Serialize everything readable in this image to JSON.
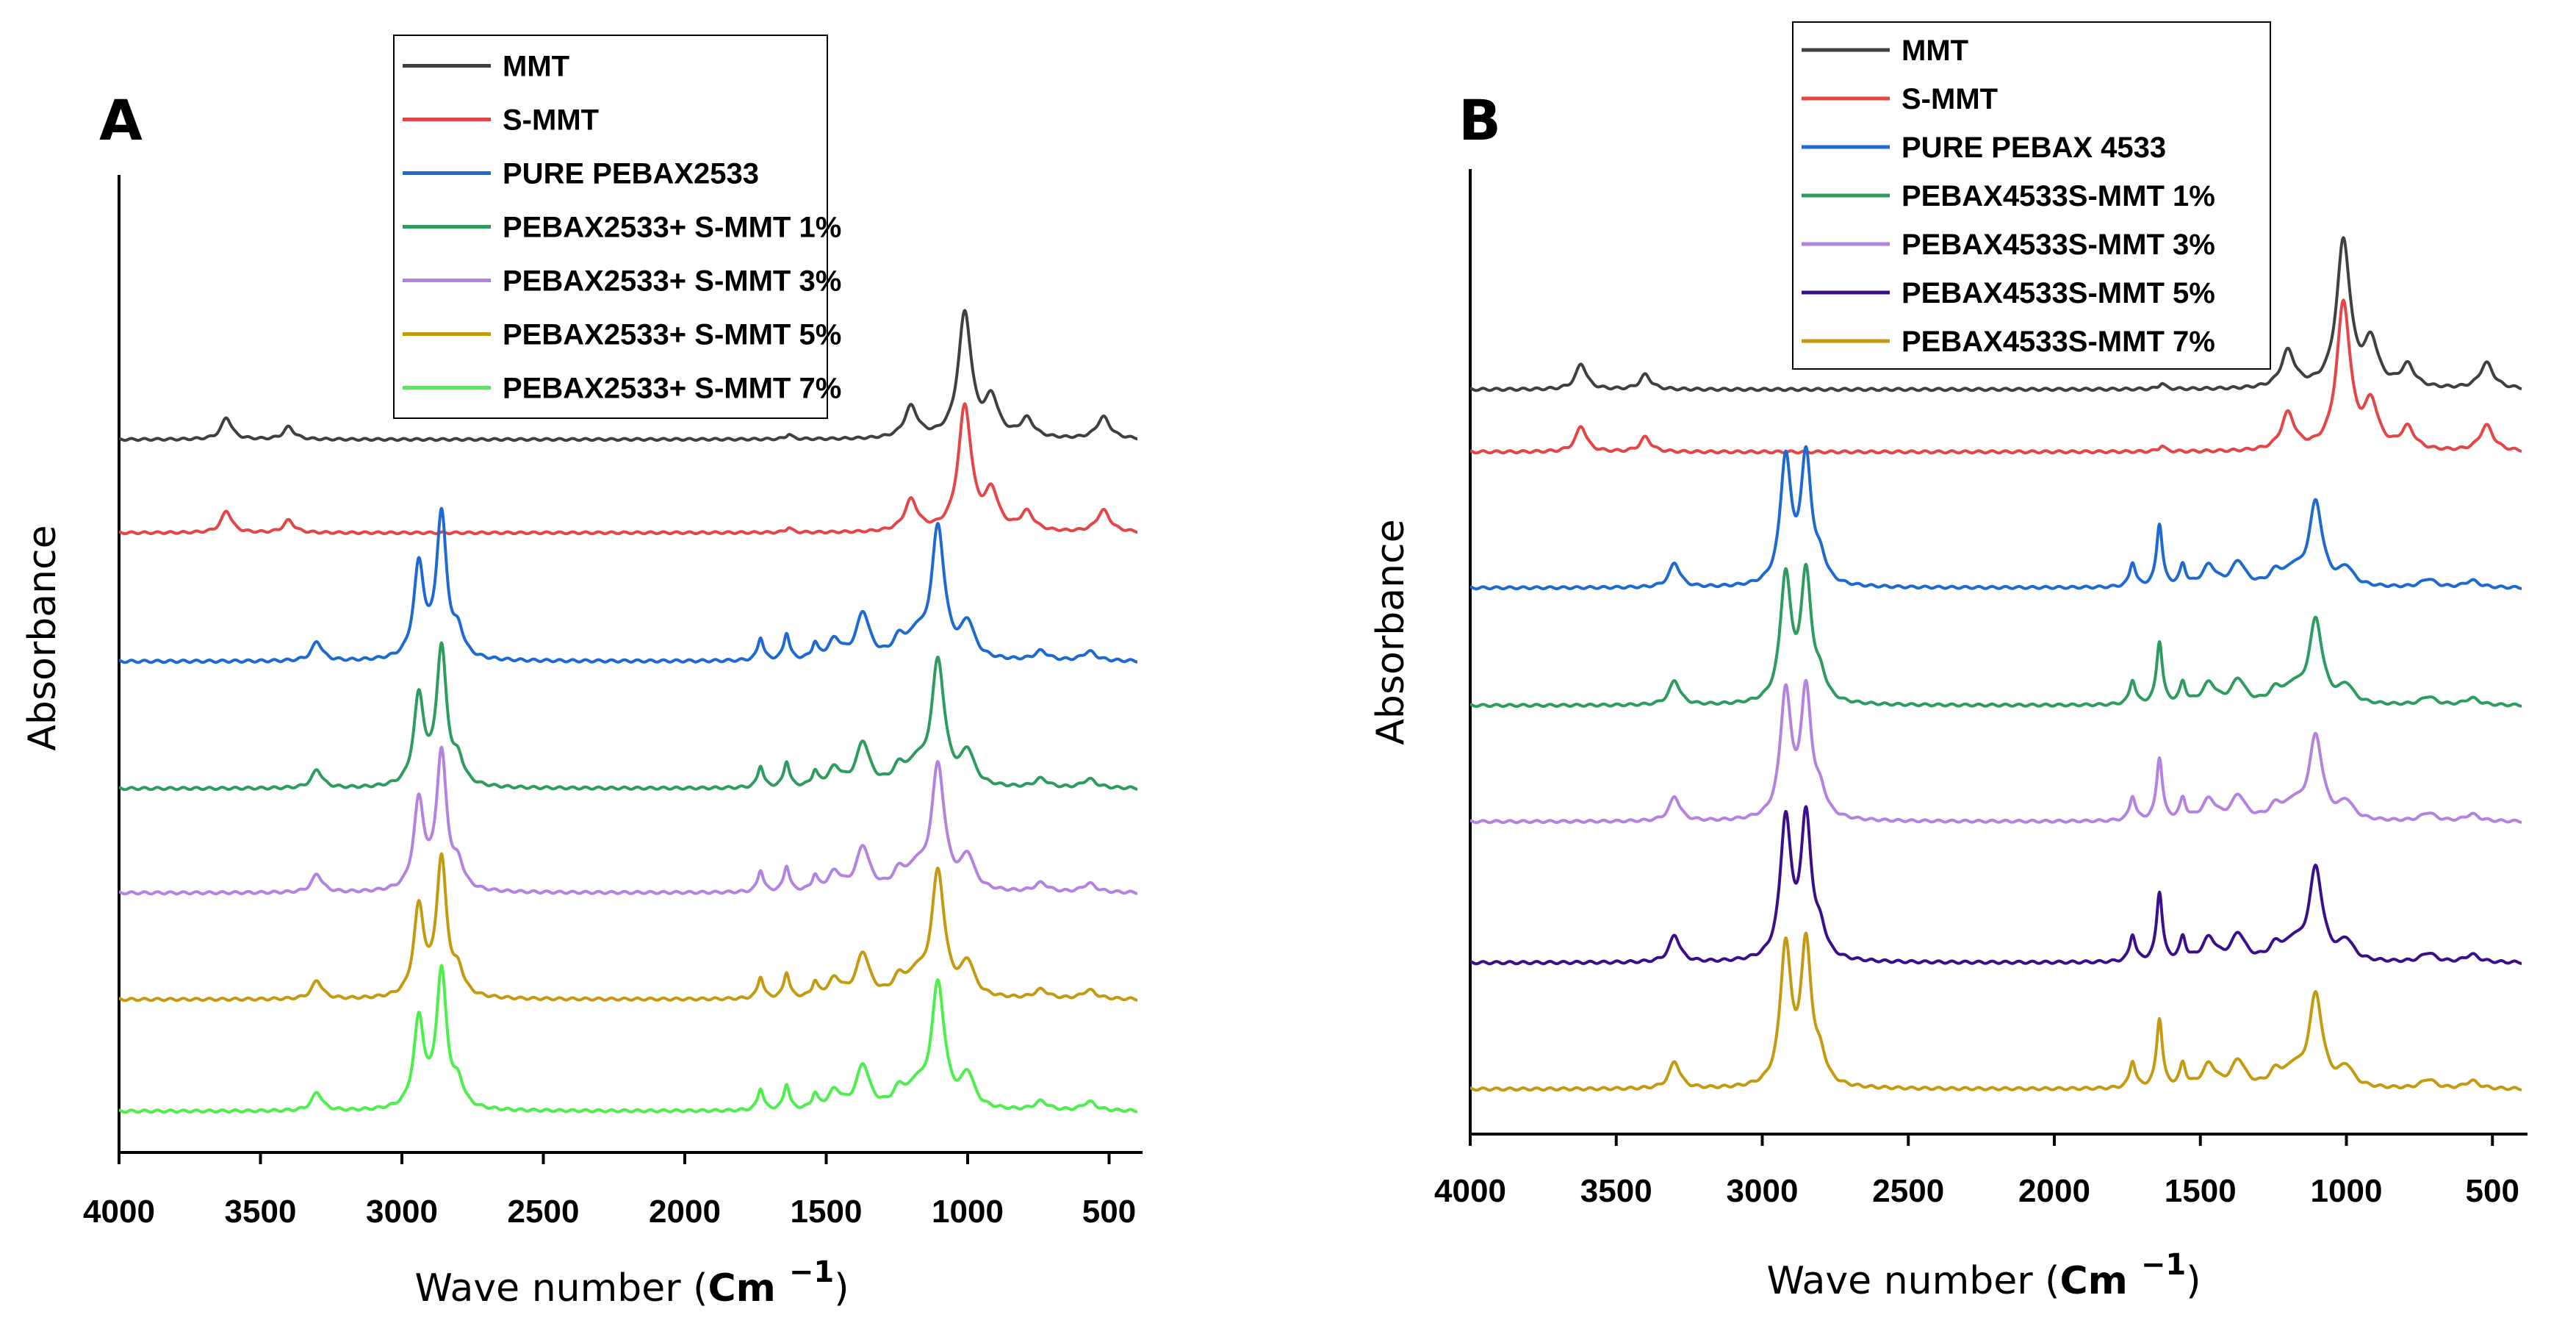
{
  "chart_data": [
    {
      "type": "line",
      "panel_label": "A",
      "xlabel": "Wave number",
      "xlabel_unit": "Cm",
      "xlabel_unit_exponent": "−1",
      "ylabel": "Absorbance",
      "xlim": [
        4000,
        400
      ],
      "xticks": [
        "4000",
        "3500",
        "3000",
        "2500",
        "2000",
        "1500",
        "1000",
        "500"
      ],
      "legend_position": "top-center",
      "series": [
        {
          "name": "MMT",
          "color": "#404040",
          "peaks": [
            [
              3620,
              0.35
            ],
            [
              3400,
              0.2
            ],
            [
              1632,
              0.08
            ],
            [
              1200,
              0.5
            ],
            [
              1010,
              2.0
            ],
            [
              915,
              0.6
            ],
            [
              790,
              0.3
            ],
            [
              520,
              0.35
            ]
          ]
        },
        {
          "name": "S-MMT",
          "color": "#e34646",
          "peaks": [
            [
              3620,
              0.35
            ],
            [
              3400,
              0.2
            ],
            [
              1632,
              0.08
            ],
            [
              1200,
              0.5
            ],
            [
              1010,
              2.0
            ],
            [
              915,
              0.6
            ],
            [
              790,
              0.3
            ],
            [
              520,
              0.35
            ]
          ]
        },
        {
          "name": "PURE PEBAX2533",
          "color": "#1e6ad0",
          "peaks": [
            [
              3300,
              0.25
            ],
            [
              2940,
              1.2
            ],
            [
              2860,
              1.85
            ],
            [
              2800,
              0.3
            ],
            [
              1732,
              0.3
            ],
            [
              1640,
              0.35
            ],
            [
              1540,
              0.2
            ],
            [
              1470,
              0.25
            ],
            [
              1370,
              0.6
            ],
            [
              1240,
              0.25
            ],
            [
              1180,
              0.25
            ],
            [
              1105,
              1.7
            ],
            [
              1000,
              0.45
            ],
            [
              740,
              0.12
            ],
            [
              570,
              0.12
            ]
          ]
        },
        {
          "name": "PEBAX2533+ S-MMT 1%",
          "color": "#2e9c5e",
          "peaks": [
            [
              3300,
              0.25
            ],
            [
              2940,
              1.2
            ],
            [
              2860,
              1.85
            ],
            [
              2800,
              0.3
            ],
            [
              1732,
              0.3
            ],
            [
              1640,
              0.35
            ],
            [
              1540,
              0.2
            ],
            [
              1470,
              0.25
            ],
            [
              1370,
              0.6
            ],
            [
              1240,
              0.25
            ],
            [
              1180,
              0.25
            ],
            [
              1105,
              1.7
            ],
            [
              1000,
              0.45
            ],
            [
              740,
              0.12
            ],
            [
              570,
              0.12
            ]
          ]
        },
        {
          "name": "PEBAX2533+ S-MMT 3%",
          "color": "#b483e2",
          "peaks": [
            [
              3300,
              0.25
            ],
            [
              2940,
              1.2
            ],
            [
              2860,
              1.85
            ],
            [
              2800,
              0.3
            ],
            [
              1732,
              0.3
            ],
            [
              1640,
              0.35
            ],
            [
              1540,
              0.2
            ],
            [
              1470,
              0.25
            ],
            [
              1370,
              0.6
            ],
            [
              1240,
              0.25
            ],
            [
              1180,
              0.25
            ],
            [
              1105,
              1.7
            ],
            [
              1000,
              0.45
            ],
            [
              740,
              0.12
            ],
            [
              570,
              0.12
            ]
          ]
        },
        {
          "name": "PEBAX2533+ S-MMT 5%",
          "color": "#c49a10",
          "peaks": [
            [
              3300,
              0.25
            ],
            [
              2940,
              1.2
            ],
            [
              2860,
              1.85
            ],
            [
              2800,
              0.3
            ],
            [
              1732,
              0.3
            ],
            [
              1640,
              0.35
            ],
            [
              1540,
              0.2
            ],
            [
              1470,
              0.25
            ],
            [
              1370,
              0.6
            ],
            [
              1240,
              0.25
            ],
            [
              1180,
              0.25
            ],
            [
              1105,
              1.7
            ],
            [
              1000,
              0.45
            ],
            [
              740,
              0.12
            ],
            [
              570,
              0.12
            ]
          ]
        },
        {
          "name": "PEBAX2533+ S-MMT 7%",
          "color": "#4cef4c",
          "peaks": [
            [
              3300,
              0.25
            ],
            [
              2940,
              1.2
            ],
            [
              2860,
              1.85
            ],
            [
              2800,
              0.3
            ],
            [
              1732,
              0.3
            ],
            [
              1640,
              0.35
            ],
            [
              1540,
              0.2
            ],
            [
              1470,
              0.25
            ],
            [
              1370,
              0.6
            ],
            [
              1240,
              0.25
            ],
            [
              1180,
              0.25
            ],
            [
              1105,
              1.7
            ],
            [
              1000,
              0.45
            ],
            [
              740,
              0.12
            ],
            [
              570,
              0.12
            ]
          ]
        }
      ]
    },
    {
      "type": "line",
      "panel_label": "B",
      "xlabel": "Wave number",
      "xlabel_unit": "Cm",
      "xlabel_unit_exponent": "−1",
      "ylabel": "Absorbance",
      "xlim": [
        4000,
        400
      ],
      "xticks": [
        "4000",
        "3500",
        "3000",
        "2500",
        "2000",
        "1500",
        "1000",
        "500"
      ],
      "legend_position": "top-center",
      "series": [
        {
          "name": "MMT",
          "color": "#404040",
          "peaks": [
            [
              3620,
              0.35
            ],
            [
              3400,
              0.2
            ],
            [
              1632,
              0.08
            ],
            [
              1200,
              0.5
            ],
            [
              1010,
              2.0
            ],
            [
              915,
              0.6
            ],
            [
              790,
              0.3
            ],
            [
              520,
              0.35
            ]
          ]
        },
        {
          "name": "S-MMT",
          "color": "#e34646",
          "peaks": [
            [
              3620,
              0.35
            ],
            [
              3400,
              0.2
            ],
            [
              1632,
              0.08
            ],
            [
              1200,
              0.5
            ],
            [
              1010,
              2.0
            ],
            [
              915,
              0.6
            ],
            [
              790,
              0.3
            ],
            [
              520,
              0.35
            ]
          ]
        },
        {
          "name": "PURE PEBAX 4533",
          "color": "#1e6ad0",
          "peaks": [
            [
              3300,
              0.35
            ],
            [
              2920,
              1.8
            ],
            [
              2850,
              1.8
            ],
            [
              2800,
              0.3
            ],
            [
              1732,
              0.35
            ],
            [
              1640,
              0.9
            ],
            [
              1560,
              0.3
            ],
            [
              1470,
              0.3
            ],
            [
              1370,
              0.35
            ],
            [
              1240,
              0.2
            ],
            [
              1180,
              0.2
            ],
            [
              1105,
              1.2
            ],
            [
              1000,
              0.25
            ],
            [
              720,
              0.12
            ],
            [
              570,
              0.1
            ]
          ]
        },
        {
          "name": "PEBAX4533S-MMT 1%",
          "color": "#2e9c5e",
          "peaks": [
            [
              3300,
              0.35
            ],
            [
              2920,
              1.8
            ],
            [
              2850,
              1.8
            ],
            [
              2800,
              0.3
            ],
            [
              1732,
              0.35
            ],
            [
              1640,
              0.9
            ],
            [
              1560,
              0.3
            ],
            [
              1470,
              0.3
            ],
            [
              1370,
              0.35
            ],
            [
              1240,
              0.2
            ],
            [
              1180,
              0.2
            ],
            [
              1105,
              1.2
            ],
            [
              1000,
              0.25
            ],
            [
              720,
              0.12
            ],
            [
              570,
              0.1
            ]
          ]
        },
        {
          "name": "PEBAX4533S-MMT 3%",
          "color": "#b483e2",
          "peaks": [
            [
              3300,
              0.35
            ],
            [
              2920,
              1.8
            ],
            [
              2850,
              1.8
            ],
            [
              2800,
              0.3
            ],
            [
              1732,
              0.35
            ],
            [
              1640,
              0.9
            ],
            [
              1560,
              0.3
            ],
            [
              1470,
              0.3
            ],
            [
              1370,
              0.35
            ],
            [
              1240,
              0.2
            ],
            [
              1180,
              0.2
            ],
            [
              1105,
              1.2
            ],
            [
              1000,
              0.25
            ],
            [
              720,
              0.12
            ],
            [
              570,
              0.1
            ]
          ]
        },
        {
          "name": "PEBAX4533S-MMT 5%",
          "color": "#3b0f8c",
          "peaks": [
            [
              3300,
              0.35
            ],
            [
              2920,
              1.8
            ],
            [
              2850,
              1.8
            ],
            [
              2800,
              0.3
            ],
            [
              1732,
              0.35
            ],
            [
              1640,
              0.9
            ],
            [
              1560,
              0.3
            ],
            [
              1470,
              0.3
            ],
            [
              1370,
              0.35
            ],
            [
              1240,
              0.2
            ],
            [
              1180,
              0.2
            ],
            [
              1105,
              1.2
            ],
            [
              1000,
              0.25
            ],
            [
              720,
              0.12
            ],
            [
              570,
              0.1
            ]
          ]
        },
        {
          "name": "PEBAX4533S-MMT 7%",
          "color": "#c49a10",
          "peaks": [
            [
              3300,
              0.35
            ],
            [
              2920,
              1.8
            ],
            [
              2850,
              1.8
            ],
            [
              2800,
              0.3
            ],
            [
              1732,
              0.35
            ],
            [
              1640,
              0.9
            ],
            [
              1560,
              0.3
            ],
            [
              1470,
              0.3
            ],
            [
              1370,
              0.35
            ],
            [
              1240,
              0.2
            ],
            [
              1180,
              0.2
            ],
            [
              1105,
              1.2
            ],
            [
              1000,
              0.25
            ],
            [
              720,
              0.12
            ],
            [
              570,
              0.1
            ]
          ]
        }
      ]
    }
  ]
}
